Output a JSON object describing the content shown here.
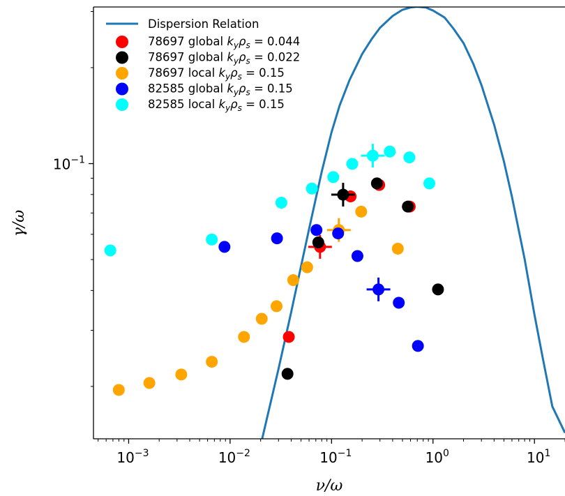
{
  "chart_data": {
    "type": "scatter",
    "xscale": "log",
    "yscale": "log",
    "xlim": [
      0.00045,
      20
    ],
    "ylim": [
      0.0137,
      0.31
    ],
    "xlabel": "ν/ω",
    "ylabel": "γ/ω",
    "grid": false,
    "legend_position": "top-left",
    "x_ticks": [
      {
        "value": 0.001,
        "base": "10",
        "exp": "−3"
      },
      {
        "value": 0.01,
        "base": "10",
        "exp": "−2"
      },
      {
        "value": 0.1,
        "base": "10",
        "exp": "−1"
      },
      {
        "value": 1,
        "base": "10",
        "exp": "0"
      },
      {
        "value": 10,
        "base": "10",
        "exp": "1"
      }
    ],
    "y_ticks": [
      {
        "value": 0.1,
        "base": "10",
        "exp": "−1"
      }
    ],
    "line": {
      "name": "Dispersion Relation",
      "color": "#1f77b4",
      "x": [
        0.0207,
        0.03,
        0.04,
        0.05,
        0.06,
        0.08,
        0.1,
        0.12,
        0.15,
        0.2,
        0.25,
        0.3,
        0.4,
        0.5,
        0.6,
        0.7,
        0.85,
        1.0,
        1.3,
        1.6,
        2.0,
        2.5,
        3.0,
        4.0,
        5.0,
        6.0,
        8.0,
        10.0,
        12.0,
        15.0,
        20.0
      ],
      "y": [
        0.0137,
        0.0227,
        0.0342,
        0.0476,
        0.0623,
        0.0943,
        0.1255,
        0.152,
        0.1825,
        0.2205,
        0.2465,
        0.2667,
        0.2905,
        0.3038,
        0.309,
        0.3105,
        0.3088,
        0.3022,
        0.2873,
        0.2645,
        0.2387,
        0.2053,
        0.1765,
        0.1326,
        0.1016,
        0.0787,
        0.0502,
        0.0336,
        0.0248,
        0.0173,
        0.0143
      ]
    },
    "series": [
      {
        "name": "78697 global",
        "label_math": {
          "k": "k",
          "ksub": "y",
          "rho": "ρ",
          "rhosub": "s",
          "value": "= 0.044"
        },
        "color": "#ff0000",
        "x": [
          0.0379,
          0.077,
          0.154,
          0.295,
          0.59
        ],
        "y": [
          0.0286,
          0.0548,
          0.0789,
          0.0857,
          0.0733
        ],
        "errorbar": {
          "x": 0.077,
          "y": 0.0548
        }
      },
      {
        "name": "78697 global",
        "label_math": {
          "k": "k",
          "ksub": "y",
          "rho": "ρ",
          "rhosub": "s",
          "value": "= 0.022"
        },
        "color": "#000000",
        "x": [
          0.0368,
          0.074,
          0.13,
          0.28,
          0.565,
          1.12
        ],
        "y": [
          0.0219,
          0.0566,
          0.0799,
          0.0867,
          0.0733,
          0.0403
        ],
        "errorbar": {
          "x": 0.13,
          "y": 0.0799
        }
      },
      {
        "name": "78697 local",
        "label_math": {
          "k": "k",
          "ksub": "y",
          "rho": "ρ",
          "rhosub": "s",
          "value": "= 0.15"
        },
        "color": "#ffa500",
        "x": [
          0.0008,
          0.0016,
          0.0033,
          0.0066,
          0.0137,
          0.0205,
          0.0287,
          0.0419,
          0.0575,
          0.118,
          0.196,
          0.45
        ],
        "y": [
          0.0195,
          0.0205,
          0.0218,
          0.0239,
          0.0286,
          0.0326,
          0.0357,
          0.0431,
          0.0473,
          0.0619,
          0.0707,
          0.0541
        ],
        "errorbar": {
          "x": 0.118,
          "y": 0.0619
        }
      },
      {
        "name": "82585 global",
        "label_math": {
          "k": "k",
          "ksub": "y",
          "rho": "ρ",
          "rhosub": "s",
          "value": "= 0.15"
        },
        "color": "#0000ff",
        "x": [
          0.0088,
          0.029,
          0.071,
          0.116,
          0.18,
          0.29,
          0.46,
          0.71
        ],
        "y": [
          0.0548,
          0.0583,
          0.0619,
          0.0604,
          0.0513,
          0.0403,
          0.0366,
          0.0268
        ],
        "errorbar": {
          "x": 0.29,
          "y": 0.0403
        }
      },
      {
        "name": "82585 local",
        "label_math": {
          "k": "k",
          "ksub": "y",
          "rho": "ρ",
          "rhosub": "s",
          "value": "= 0.15"
        },
        "color": "#00ffff",
        "x": [
          0.00066,
          0.0066,
          0.032,
          0.064,
          0.104,
          0.16,
          0.255,
          0.375,
          0.585,
          0.92
        ],
        "y": [
          0.0534,
          0.0578,
          0.0754,
          0.0835,
          0.0907,
          0.0998,
          0.1059,
          0.1091,
          0.1046,
          0.0867
        ],
        "errorbar": {
          "x": 0.255,
          "y": 0.1059
        }
      }
    ]
  }
}
